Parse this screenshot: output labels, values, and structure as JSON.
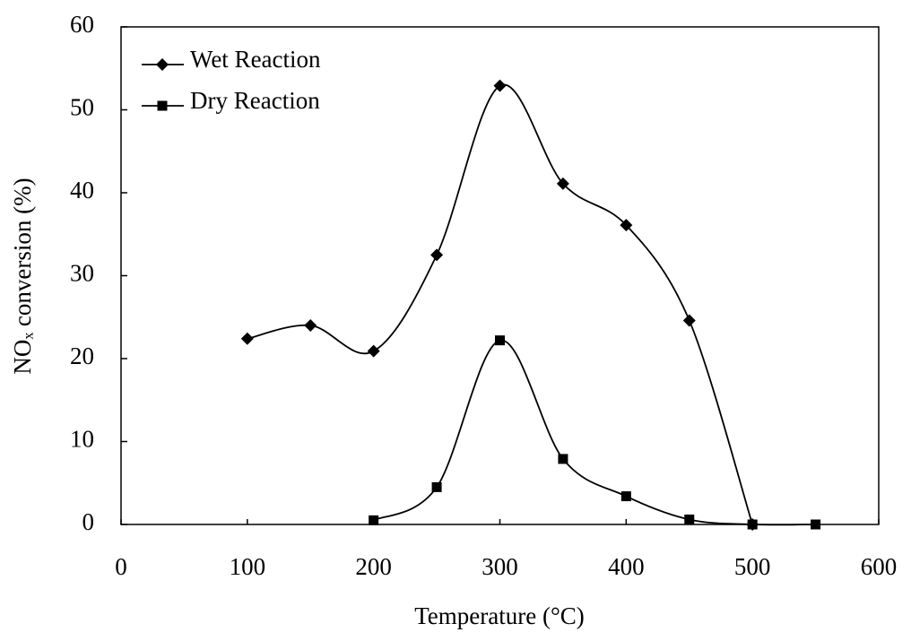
{
  "chart_data": {
    "type": "line",
    "xlabel": "Temperature (°C)",
    "ylabel": "NOₓ conversion (%)",
    "x": [
      100,
      150,
      200,
      250,
      300,
      350,
      400,
      450,
      500,
      550
    ],
    "series": [
      {
        "name": "Wet Reaction",
        "color": "#000000",
        "marker": "diamond",
        "values": [
          22.4,
          24.0,
          20.9,
          32.5,
          52.9,
          41.1,
          36.1,
          24.6,
          0,
          null
        ]
      },
      {
        "name": "Dry Reaction",
        "color": "#000000",
        "marker": "square",
        "values": [
          null,
          null,
          0.5,
          4.5,
          22.2,
          7.9,
          3.4,
          0.6,
          0,
          0
        ]
      }
    ],
    "xlim": [
      0,
      600
    ],
    "xticks": [
      0,
      100,
      200,
      300,
      400,
      500,
      600
    ],
    "ylim": [
      0,
      60
    ],
    "yticks": [
      0,
      10,
      20,
      30,
      40,
      50,
      60
    ],
    "grid": false,
    "legend": "upper left",
    "smooth": true
  }
}
